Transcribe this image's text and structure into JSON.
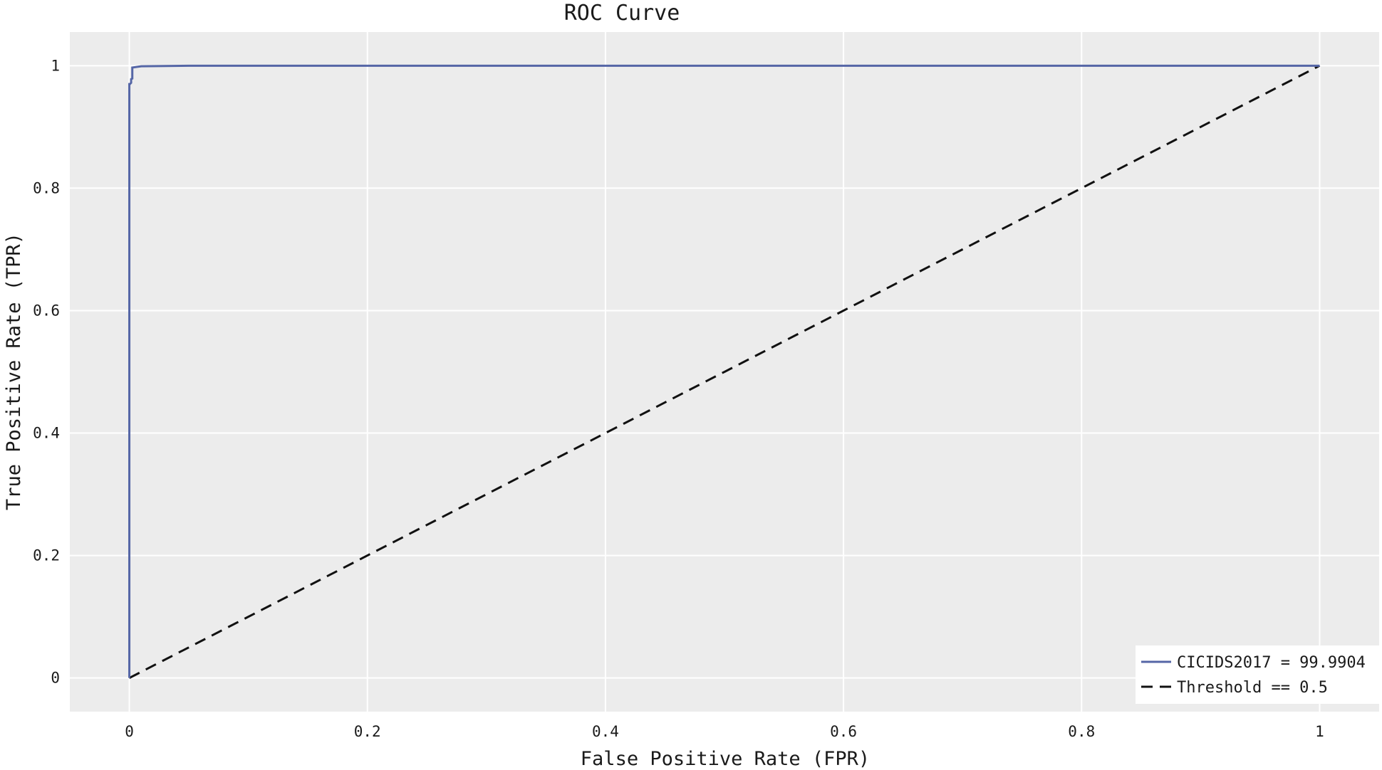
{
  "chart_data": {
    "type": "line",
    "title": "ROC Curve",
    "xlabel": "False Positive Rate (FPR)",
    "ylabel": "True Positive Rate (TPR)",
    "xlim": [
      -0.05,
      1.05
    ],
    "ylim": [
      -0.055,
      1.055
    ],
    "xticks": [
      {
        "value": 0,
        "label": "0"
      },
      {
        "value": 0.2,
        "label": "0.2"
      },
      {
        "value": 0.4,
        "label": "0.4"
      },
      {
        "value": 0.6,
        "label": "0.6"
      },
      {
        "value": 0.8,
        "label": "0.8"
      },
      {
        "value": 1,
        "label": "1"
      }
    ],
    "yticks": [
      {
        "value": 0,
        "label": "0"
      },
      {
        "value": 0.2,
        "label": "0.2"
      },
      {
        "value": 0.4,
        "label": "0.4"
      },
      {
        "value": 0.6,
        "label": "0.6"
      },
      {
        "value": 0.8,
        "label": "0.8"
      },
      {
        "value": 1,
        "label": "1"
      }
    ],
    "grid": true,
    "legend_position": "bottom-right",
    "series": [
      {
        "name": "CICIDS2017 = 99.9904",
        "color": "#5566a6",
        "dash": "solid",
        "x": [
          0,
          0,
          0.0005,
          0.0015,
          0.0015,
          0.0025,
          0.0025,
          0.01,
          0.05,
          1
        ],
        "y": [
          0,
          0.97,
          0.97,
          0.972,
          0.978,
          0.979,
          0.997,
          0.999,
          1.0,
          1.0
        ]
      },
      {
        "name": "Threshold == 0.5",
        "color": "#111111",
        "dash": "dashed",
        "x": [
          0,
          1
        ],
        "y": [
          0,
          1
        ]
      }
    ]
  }
}
